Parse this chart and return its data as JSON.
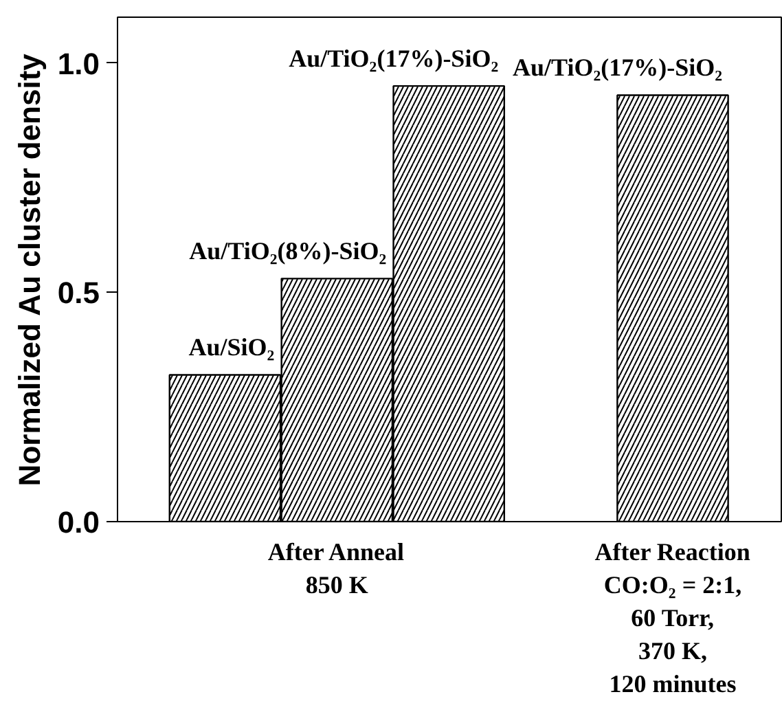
{
  "chart_data": {
    "type": "bar",
    "ylabel": "Normalized Au cluster density",
    "categories": [
      null,
      "After Anneal\n850 K",
      null,
      null,
      "After Reaction\nCO:O₂ = 2:1,\n60 Torr,\n370 K,\n120 minutes"
    ],
    "series": [
      {
        "name": "Au/SiO₂",
        "color": "#000000",
        "values": [
          0.32,
          null,
          null,
          null,
          null
        ]
      },
      {
        "name": "Au/TiO₂(8%)-SiO₂",
        "color": "#000000",
        "values": [
          null,
          0.53,
          null,
          null,
          null
        ]
      },
      {
        "name": "Au/TiO₂(17%)-SiO₂",
        "color": "#000000",
        "values": [
          null,
          null,
          0.95,
          null,
          0.93
        ]
      }
    ],
    "ylim": [
      0,
      1.1
    ],
    "yticks": [
      {
        "value": 0,
        "label": "0.0"
      },
      {
        "value": 0.5,
        "label": "0.5"
      },
      {
        "value": 1,
        "label": "1.0"
      }
    ],
    "grid": false
  }
}
